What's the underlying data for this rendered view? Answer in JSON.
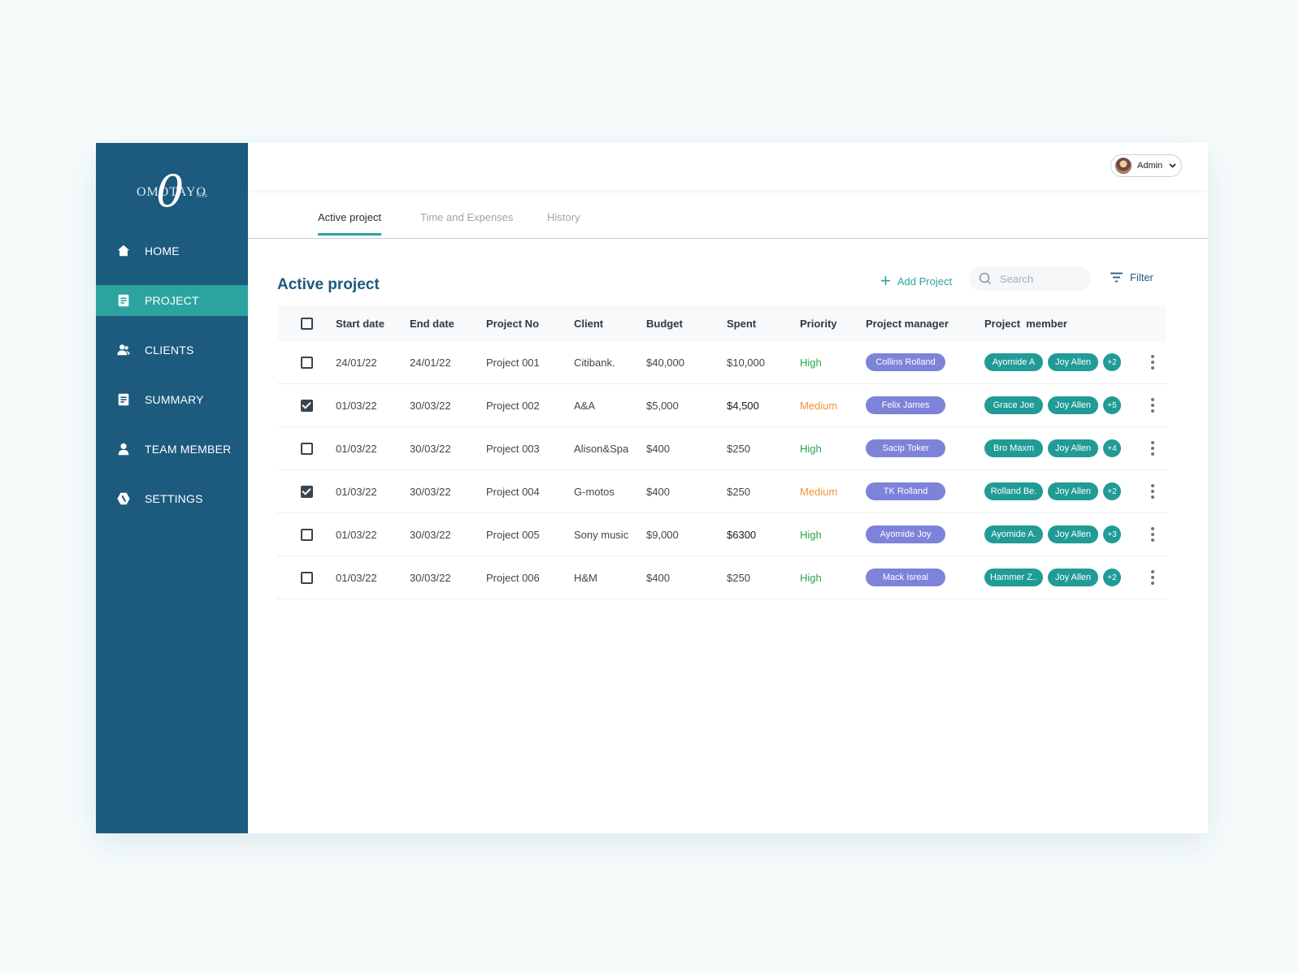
{
  "logo": {
    "big": "0",
    "text": "OMOTAYO",
    "sub": "CTs"
  },
  "sidebar": {
    "items": [
      {
        "label": "HOME",
        "icon": "home-icon"
      },
      {
        "label": "PROJECT",
        "icon": "document-icon",
        "active": true
      },
      {
        "label": "CLIENTS",
        "icon": "users-icon"
      },
      {
        "label": "SUMMARY",
        "icon": "document-icon"
      },
      {
        "label": "TEAM MEMBER",
        "icon": "user-icon"
      },
      {
        "label": "SETTINGS",
        "icon": "gear-icon"
      }
    ]
  },
  "header": {
    "user_label": "Admin"
  },
  "tabs": [
    {
      "label": "Active project",
      "active": true
    },
    {
      "label": "Time and Expenses"
    },
    {
      "label": "History"
    }
  ],
  "main": {
    "title": "Active project",
    "add_label": "Add Project",
    "search_placeholder": "Search",
    "filter_label": "Filter"
  },
  "table": {
    "headers": [
      "Start date",
      "End date",
      "Project No",
      "Client",
      "Budget",
      "Spent",
      "Priority",
      "Project manager",
      "Project  member"
    ],
    "rows": [
      {
        "checked": false,
        "start": "24/01/22",
        "end": "24/01/22",
        "no": "Project 001",
        "client": "Citibank.",
        "budget": "$40,000",
        "spent": "$10,000",
        "priority": "High",
        "manager": "Collins Rolland",
        "member1": "Ayomide A",
        "member2": "Joy Allen",
        "more": "+2"
      },
      {
        "checked": true,
        "start": "01/03/22",
        "end": "30/03/22",
        "no": "Project 002",
        "client": "A&A",
        "budget": "$5,000",
        "spent": "$4,500",
        "priority": "Medium",
        "manager": "Felix James",
        "member1": "Grace Joe",
        "member2": "Joy Allen",
        "more": "+5"
      },
      {
        "checked": false,
        "start": "01/03/22",
        "end": "30/03/22",
        "no": "Project 003",
        "client": "Alison&Spa",
        "budget": "$400",
        "spent": "$250",
        "priority": "High",
        "manager": "Sacip Toker",
        "member1": "Bro Maxm",
        "member2": "Joy Allen",
        "more": "+4"
      },
      {
        "checked": true,
        "start": "01/03/22",
        "end": "30/03/22",
        "no": "Project 004",
        "client": "G-motos",
        "budget": "$400",
        "spent": "$250",
        "priority": "Medium",
        "manager": "TK Rolland",
        "member1": "Rolland Be.",
        "member2": "Joy Allen",
        "more": "+2"
      },
      {
        "checked": false,
        "start": "01/03/22",
        "end": "30/03/22",
        "no": "Project 005",
        "client": "Sony music",
        "budget": "$9,000",
        "spent": "$6300",
        "priority": "High",
        "manager": "Ayomide Joy",
        "member1": "Ayomide A.",
        "member2": "Joy Allen",
        "more": "+3"
      },
      {
        "checked": false,
        "start": "01/03/22",
        "end": "30/03/22",
        "no": "Project 006",
        "client": "H&M",
        "budget": "$400",
        "spent": "$250",
        "priority": "High",
        "manager": "Mack Isreal",
        "member1": "Hammer Z..",
        "member2": "Joy Allen",
        "more": "+2"
      }
    ]
  },
  "colors": {
    "sidebar": "#1c5a7e",
    "accent": "#2ba4a0",
    "manager_pill": "#7d83d8",
    "member_pill": "#219b96",
    "high": "#2aa54a",
    "medium": "#f0923d"
  }
}
